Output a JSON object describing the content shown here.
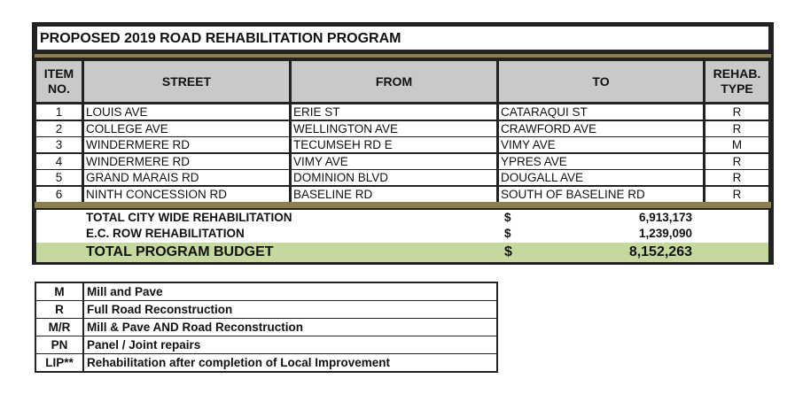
{
  "title": "PROPOSED 2019 ROAD REHABILITATION PROGRAM",
  "headers": {
    "item": "ITEM NO.",
    "street": "STREET",
    "from": "FROM",
    "to": "TO",
    "type": "REHAB. TYPE"
  },
  "rows": [
    {
      "no": "1",
      "street": "LOUIS AVE",
      "from": "ERIE ST",
      "to": "CATARAQUI ST",
      "type": "R"
    },
    {
      "no": "2",
      "street": "COLLEGE AVE",
      "from": "WELLINGTON AVE",
      "to": "CRAWFORD AVE",
      "type": "R"
    },
    {
      "no": "3",
      "street": "WINDERMERE RD",
      "from": "TECUMSEH RD E",
      "to": "VIMY AVE",
      "type": "M"
    },
    {
      "no": "4",
      "street": "WINDERMERE RD",
      "from": "VIMY AVE",
      "to": "YPRES AVE",
      "type": "R"
    },
    {
      "no": "5",
      "street": "GRAND MARAIS RD",
      "from": "DOMINION BLVD",
      "to": "DOUGALL AVE",
      "type": "R"
    },
    {
      "no": "6",
      "street": "NINTH CONCESSION RD",
      "from": "BASELINE RD",
      "to": "SOUTH OF BASELINE RD",
      "type": "R"
    }
  ],
  "totals": [
    {
      "label": "TOTAL CITY WIDE REHABILITATION",
      "currency": "$",
      "value": "6,913,173"
    },
    {
      "label": "E.C. ROW REHABILITATION",
      "currency": "$",
      "value": "1,239,090"
    },
    {
      "label": "TOTAL PROGRAM BUDGET",
      "currency": "$",
      "value": "8,152,263"
    }
  ],
  "legend": [
    {
      "code": "M",
      "desc": "Mill and Pave"
    },
    {
      "code": "R",
      "desc": "Full Road Reconstruction"
    },
    {
      "code": "M/R",
      "desc": "Mill & Pave AND Road Reconstruction"
    },
    {
      "code": "PN",
      "desc": "Panel / Joint repairs"
    },
    {
      "code": "LIP**",
      "desc": "Rehabilitation after completion of Local Improvement"
    }
  ],
  "colors": {
    "olive": "#8c7f4f",
    "header_gray": "#c9c9c9",
    "total_green": "#c5d89e"
  }
}
